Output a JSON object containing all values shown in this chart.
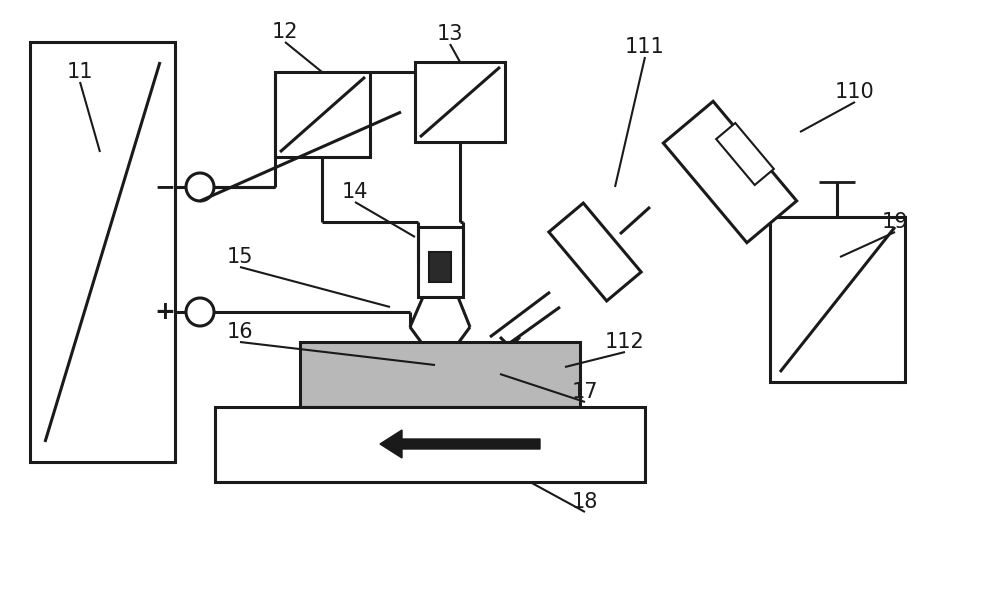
{
  "bg_color": "#ffffff",
  "lc": "#1a1a1a",
  "gray": "#b8b8b8",
  "dark": "#2a2a2a",
  "lw": 2.2,
  "lw_thin": 1.5
}
